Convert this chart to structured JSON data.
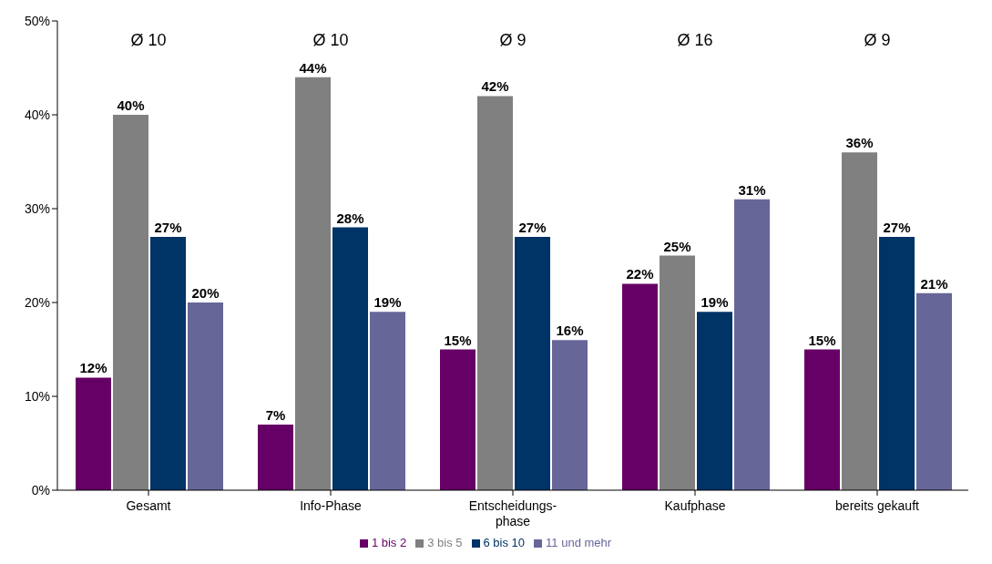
{
  "chart_data": {
    "type": "bar",
    "categories": [
      "Gesamt",
      "Info-Phase",
      "Entscheidungs-phase",
      "Kaufphase",
      "bereits gekauft"
    ],
    "series": [
      {
        "name": "1 bis 2",
        "color": "#660066",
        "values": [
          12,
          7,
          15,
          22,
          15
        ],
        "value_labels": [
          "12%",
          "7%",
          "15%",
          "22%",
          "15%"
        ]
      },
      {
        "name": "3 bis 5",
        "color": "#808080",
        "values": [
          40,
          44,
          42,
          25,
          36
        ],
        "value_labels": [
          "40%",
          "44%",
          "42%",
          "25%",
          "36%"
        ]
      },
      {
        "name": "6 bis 10",
        "color": "#003366",
        "values": [
          27,
          28,
          27,
          19,
          27
        ],
        "value_labels": [
          "27%",
          "28%",
          "27%",
          "19%",
          "27%"
        ]
      },
      {
        "name": "11 und mehr",
        "color": "#666699",
        "values": [
          20,
          19,
          16,
          31,
          21
        ],
        "value_labels": [
          "20%",
          "19%",
          "16%",
          "31%",
          "21%"
        ]
      }
    ],
    "ylim": [
      0,
      50
    ],
    "yticks": [
      {
        "value": 0,
        "label": "0%"
      },
      {
        "value": 10,
        "label": "10%"
      },
      {
        "value": 20,
        "label": "20%"
      },
      {
        "value": 30,
        "label": "30%"
      },
      {
        "value": 40,
        "label": "40%"
      },
      {
        "value": 50,
        "label": "50%"
      }
    ],
    "annotations": [
      "Ø 10",
      "Ø 10",
      "Ø 9",
      "Ø 16",
      "Ø 9"
    ],
    "grid": false,
    "legend": "bottom"
  }
}
